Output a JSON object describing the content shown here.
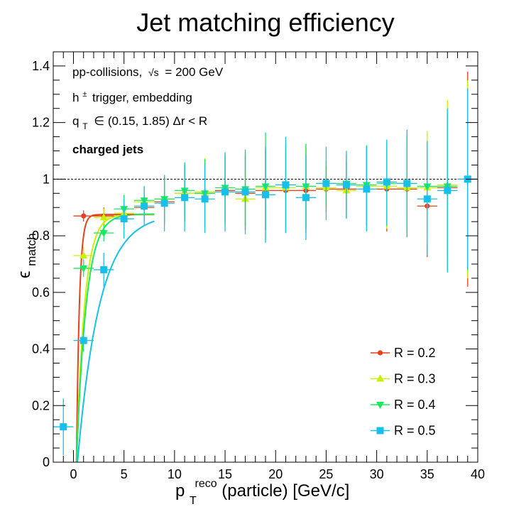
{
  "chart_data": {
    "type": "scatter",
    "title": "Jet matching efficiency",
    "xlabel": {
      "base": "p",
      "sub": "T",
      "sup": "reco",
      "rest": "(particle) [GeV/c]"
    },
    "ylabel": {
      "base": "ϵ",
      "sub": "match"
    },
    "xlim": [
      -2,
      40
    ],
    "ylim": [
      0,
      1.45
    ],
    "x_ticks": [
      0,
      5,
      10,
      15,
      20,
      25,
      30,
      35,
      40
    ],
    "y_ticks": [
      0,
      0.2,
      0.4,
      0.6,
      0.8,
      1,
      1.2,
      1.4
    ],
    "x_tick_labels": [
      "0",
      "5",
      "10",
      "15",
      "20",
      "25",
      "30",
      "35",
      "40"
    ],
    "y_tick_labels": [
      "0",
      "0.2",
      "0.4",
      "0.6",
      "0.8",
      "1",
      "1.2",
      "1.4"
    ],
    "reference_line": {
      "y": 1,
      "style": "dashed"
    },
    "annotations": {
      "line1_prefix": "pp-collisions,",
      "line1_sqrt": "√s",
      "line1_suffix": "= 200 GeV",
      "line2_base": "h",
      "line2_sup": "±",
      "line2_rest": "trigger, embedding",
      "line3_base": "q",
      "line3_sub": "T",
      "line3_rest": "∈ (0.15, 1.85) Δr < R",
      "line4": "charged jets"
    },
    "legend_position": "bottom-right",
    "series": [
      {
        "name": "R = 0.2",
        "color": "#e8401a",
        "marker": "circle",
        "fit": {
          "plateau": 0.875,
          "x0": 0.3,
          "slope": 3.5
        },
        "points": [
          {
            "x": 1,
            "y": 0.87,
            "err": 0.02
          },
          {
            "x": 3,
            "y": 0.87,
            "err": 0.03
          },
          {
            "x": 5,
            "y": 0.875,
            "err": 0.05
          },
          {
            "x": 7,
            "y": 0.9,
            "err": 0.05
          },
          {
            "x": 9,
            "y": 0.92,
            "err": 0.08
          },
          {
            "x": 11,
            "y": 0.95,
            "err": 0.1
          },
          {
            "x": 13,
            "y": 0.95,
            "err": 0.12
          },
          {
            "x": 15,
            "y": 0.96,
            "err": 0.12
          },
          {
            "x": 17,
            "y": 0.95,
            "err": 0.13
          },
          {
            "x": 19,
            "y": 0.96,
            "err": 0.14
          },
          {
            "x": 21,
            "y": 0.96,
            "err": 0.15
          },
          {
            "x": 23,
            "y": 0.96,
            "err": 0.15
          },
          {
            "x": 25,
            "y": 0.965,
            "err": 0.08
          },
          {
            "x": 27,
            "y": 0.965,
            "err": 0.1
          },
          {
            "x": 29,
            "y": 0.975,
            "err": 0.14
          },
          {
            "x": 31,
            "y": 0.965,
            "err": 0.15
          },
          {
            "x": 33,
            "y": 0.965,
            "err": 0.17
          },
          {
            "x": 35,
            "y": 0.905,
            "err": 0.18
          },
          {
            "x": 37,
            "y": 0.97,
            "err": 0.27
          },
          {
            "x": 39,
            "y": 1.0,
            "err": 0.38
          }
        ]
      },
      {
        "name": "R = 0.3",
        "color": "#c8f000",
        "marker": "triangle-up",
        "fit": {
          "plateau": 0.876,
          "x0": 0.3,
          "slope": 1.25
        },
        "points": [
          {
            "x": 1,
            "y": 0.73,
            "err": 0.03
          },
          {
            "x": 3,
            "y": 0.865,
            "err": 0.03
          },
          {
            "x": 5,
            "y": 0.88,
            "err": 0.05
          },
          {
            "x": 7,
            "y": 0.92,
            "err": 0.05
          },
          {
            "x": 9,
            "y": 0.93,
            "err": 0.08
          },
          {
            "x": 11,
            "y": 0.95,
            "err": 0.1
          },
          {
            "x": 13,
            "y": 0.955,
            "err": 0.12
          },
          {
            "x": 15,
            "y": 0.955,
            "err": 0.12
          },
          {
            "x": 17,
            "y": 0.93,
            "err": 0.1
          },
          {
            "x": 19,
            "y": 0.97,
            "err": 0.14
          },
          {
            "x": 21,
            "y": 0.97,
            "err": 0.15
          },
          {
            "x": 23,
            "y": 0.975,
            "err": 0.15
          },
          {
            "x": 25,
            "y": 0.97,
            "err": 0.08
          },
          {
            "x": 27,
            "y": 0.96,
            "err": 0.1
          },
          {
            "x": 29,
            "y": 0.975,
            "err": 0.14
          },
          {
            "x": 31,
            "y": 0.975,
            "err": 0.15
          },
          {
            "x": 33,
            "y": 0.97,
            "err": 0.17
          },
          {
            "x": 35,
            "y": 0.97,
            "err": 0.2
          },
          {
            "x": 37,
            "y": 0.98,
            "err": 0.3
          },
          {
            "x": 39,
            "y": 1.0,
            "err": 0.35
          }
        ]
      },
      {
        "name": "R = 0.4",
        "color": "#19e860",
        "marker": "triangle-down",
        "fit": {
          "plateau": 0.877,
          "x0": 0.3,
          "slope": 1.05
        },
        "points": [
          {
            "x": 1,
            "y": 0.685,
            "err": 0.03
          },
          {
            "x": 3,
            "y": 0.81,
            "err": 0.03
          },
          {
            "x": 5,
            "y": 0.895,
            "err": 0.05
          },
          {
            "x": 7,
            "y": 0.925,
            "err": 0.05
          },
          {
            "x": 9,
            "y": 0.93,
            "err": 0.08
          },
          {
            "x": 11,
            "y": 0.96,
            "err": 0.1
          },
          {
            "x": 13,
            "y": 0.95,
            "err": 0.12
          },
          {
            "x": 15,
            "y": 0.97,
            "err": 0.12
          },
          {
            "x": 17,
            "y": 0.965,
            "err": 0.13
          },
          {
            "x": 19,
            "y": 0.975,
            "err": 0.19
          },
          {
            "x": 21,
            "y": 0.98,
            "err": 0.15
          },
          {
            "x": 23,
            "y": 0.975,
            "err": 0.15
          },
          {
            "x": 25,
            "y": 0.985,
            "err": 0.08
          },
          {
            "x": 27,
            "y": 0.985,
            "err": 0.1
          },
          {
            "x": 29,
            "y": 0.98,
            "err": 0.14
          },
          {
            "x": 31,
            "y": 0.985,
            "err": 0.15
          },
          {
            "x": 33,
            "y": 0.985,
            "err": 0.17
          },
          {
            "x": 35,
            "y": 0.975,
            "err": 0.16
          },
          {
            "x": 37,
            "y": 0.975,
            "err": 0.25
          },
          {
            "x": 39,
            "y": 1.0,
            "err": 0.32
          }
        ]
      },
      {
        "name": "R = 0.5",
        "color": "#17c0e8",
        "marker": "square",
        "fit": {
          "plateau": 0.878,
          "x0": 0.4,
          "slope": 0.46
        },
        "points": [
          {
            "x": -1,
            "y": 0.125,
            "err": 0.1
          },
          {
            "x": 1,
            "y": 0.43,
            "err": 0.04
          },
          {
            "x": 3,
            "y": 0.68,
            "err": 0.06
          },
          {
            "x": 5,
            "y": 0.86,
            "err": 0.07
          },
          {
            "x": 7,
            "y": 0.905,
            "err": 0.07
          },
          {
            "x": 9,
            "y": 0.915,
            "err": 0.1
          },
          {
            "x": 11,
            "y": 0.935,
            "err": 0.12
          },
          {
            "x": 13,
            "y": 0.93,
            "err": 0.12
          },
          {
            "x": 15,
            "y": 0.955,
            "err": 0.14
          },
          {
            "x": 17,
            "y": 0.955,
            "err": 0.15
          },
          {
            "x": 19,
            "y": 0.945,
            "err": 0.17
          },
          {
            "x": 21,
            "y": 0.98,
            "err": 0.17
          },
          {
            "x": 23,
            "y": 0.935,
            "err": 0.15
          },
          {
            "x": 25,
            "y": 0.985,
            "err": 0.13
          },
          {
            "x": 27,
            "y": 0.98,
            "err": 0.12
          },
          {
            "x": 29,
            "y": 0.965,
            "err": 0.15
          },
          {
            "x": 31,
            "y": 0.99,
            "err": 0.15
          },
          {
            "x": 33,
            "y": 0.985,
            "err": 0.19
          },
          {
            "x": 35,
            "y": 0.93,
            "err": 0.2
          },
          {
            "x": 37,
            "y": 0.96,
            "err": 0.29
          },
          {
            "x": 39,
            "y": 1.0,
            "err": 0.32
          }
        ]
      }
    ]
  }
}
